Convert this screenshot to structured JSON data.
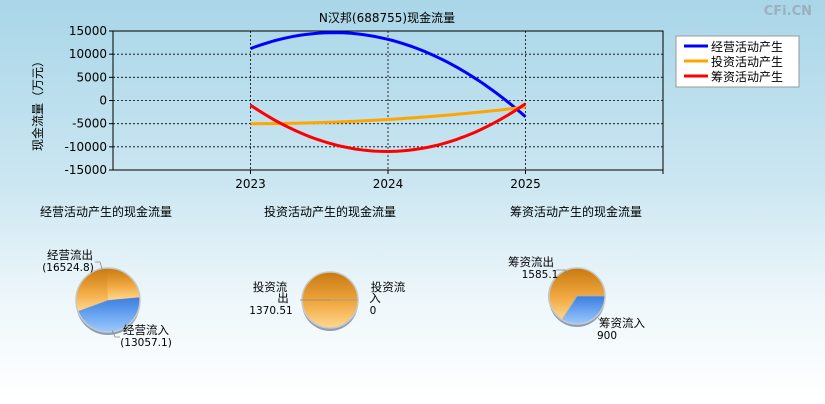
{
  "watermark": "CFi.CN",
  "chart_data": [
    {
      "type": "line",
      "title": "N汉邦(688755)现金流量",
      "ylabel": "现金流量（万元）",
      "xlabel": "",
      "x": [
        2023,
        2024,
        2025
      ],
      "x_tick_labels": [
        "2023",
        "2024",
        "2025"
      ],
      "xlim": [
        2022,
        2026
      ],
      "ylim": [
        -15000,
        15000
      ],
      "y_ticks": [
        15000,
        10000,
        5000,
        0,
        -5000,
        -10000,
        -15000
      ],
      "y_tick_labels": [
        "15000",
        "10000",
        "5000",
        "0",
        "-5000",
        "-10000",
        "-15000"
      ],
      "grid": true,
      "legend_position": "top-right",
      "series": [
        {
          "name": "经营活动产生",
          "color": "#0000ff",
          "values": [
            11200,
            13200,
            -3500
          ]
        },
        {
          "name": "投资活动产生",
          "color": "#ffa500",
          "values": [
            -5000,
            -4100,
            -1400
          ]
        },
        {
          "name": "筹资活动产生",
          "color": "#ff0000",
          "values": [
            -1000,
            -11000,
            -700
          ]
        }
      ]
    },
    {
      "type": "pie",
      "title": "经营活动产生的现金流量",
      "slices": [
        {
          "label": "经营流出",
          "value_text": "(16524.8)",
          "value": 16524.8,
          "color": "#e8a030"
        },
        {
          "label": "经营流入",
          "value_text": "(13057.1)",
          "value": 13057.1,
          "color": "#5a9ef0"
        }
      ]
    },
    {
      "type": "pie",
      "title": "投资活动产生的现金流量",
      "slices": [
        {
          "label": "投资流出",
          "value_text": "1370.51",
          "value": 1370.51,
          "color": "#e8a030"
        },
        {
          "label": "投资流入",
          "value_text": "0",
          "value": 0,
          "color": "#5a9ef0"
        }
      ]
    },
    {
      "type": "pie",
      "title": "筹资活动产生的现金流量",
      "slices": [
        {
          "label": "筹资流出",
          "value_text": "1585.1",
          "value": 1585.1,
          "color": "#e8a030"
        },
        {
          "label": "筹资流入",
          "value_text": "900",
          "value": 900,
          "color": "#5a9ef0"
        }
      ]
    }
  ]
}
